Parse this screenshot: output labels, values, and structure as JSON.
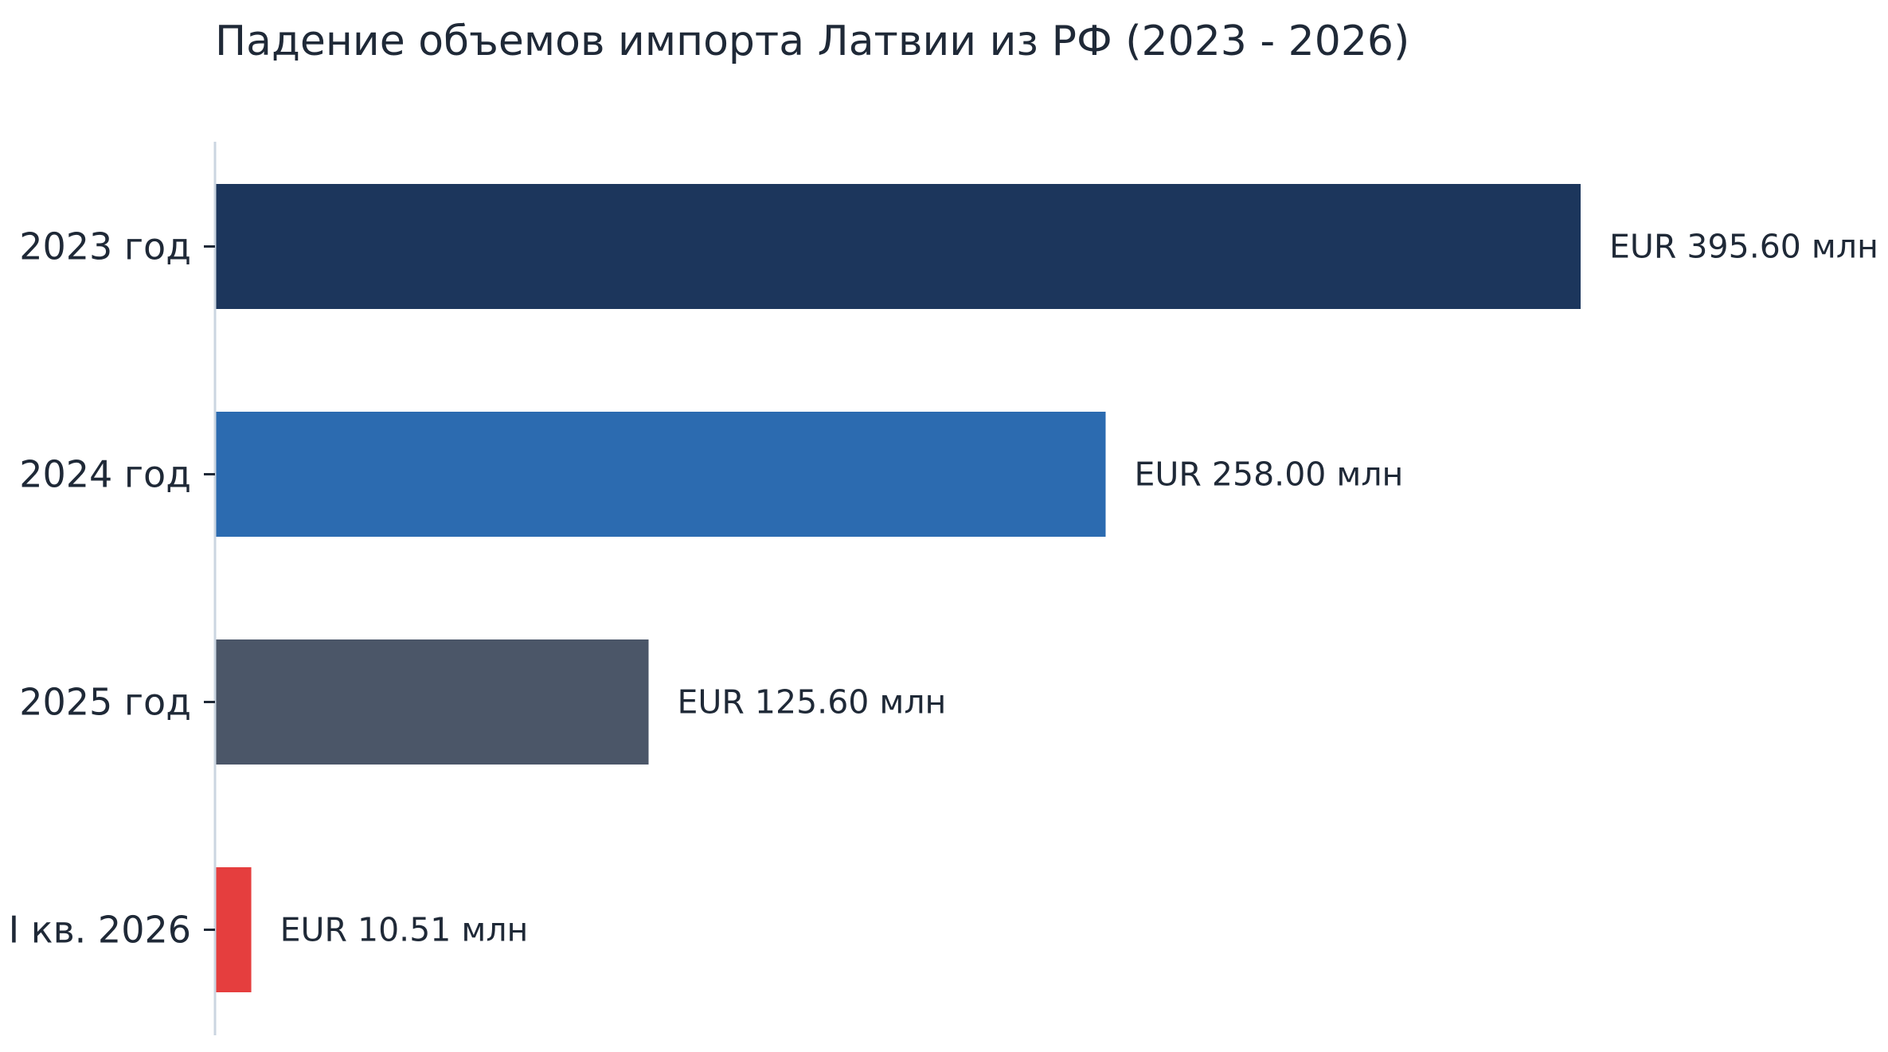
{
  "chart_data": {
    "type": "bar",
    "orientation": "horizontal",
    "title": "Падение объемов импорта Латвии из РФ (2023 - 2026)",
    "xlabel": "",
    "ylabel": "",
    "unit": "EUR млн",
    "xlim": [
      0,
      395.6
    ],
    "grid": false,
    "legend": "none",
    "categories": [
      "2023 год",
      "2024 год",
      "2025 год",
      "I кв. 2026"
    ],
    "values": [
      395.6,
      258.0,
      125.6,
      10.51
    ],
    "data_labels": [
      "EUR 395.60 млн",
      "EUR 258.00 млн",
      "EUR 125.60 млн",
      "EUR 10.51 млн"
    ],
    "colors": [
      "#1c365c",
      "#2c6bb0",
      "#4b5668",
      "#e53e3e"
    ]
  }
}
